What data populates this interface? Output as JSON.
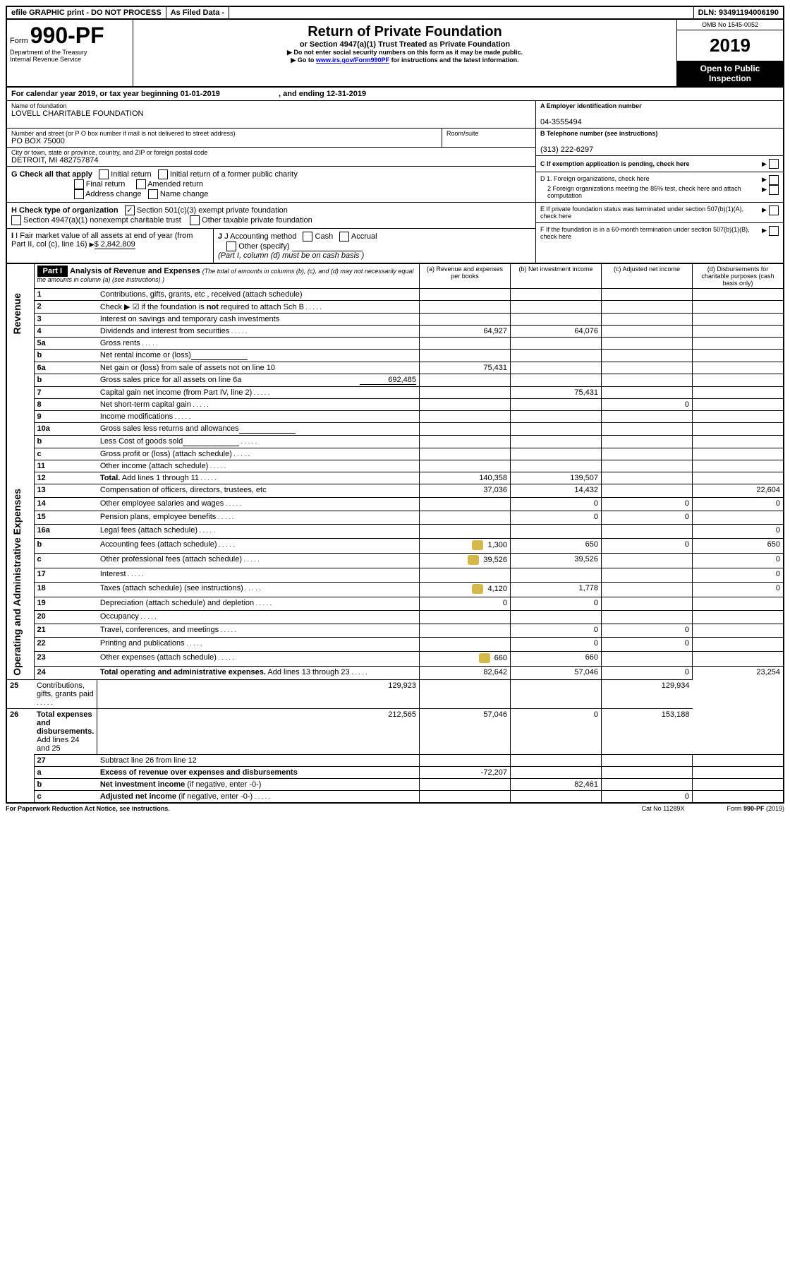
{
  "topbar": {
    "efile": "efile GRAPHIC print - DO NOT PROCESS",
    "asfiled": "As Filed Data -",
    "dln_label": "DLN:",
    "dln": "93491194006190"
  },
  "header": {
    "form_prefix": "Form",
    "form_number": "990-PF",
    "dept": "Department of the Treasury",
    "irs": "Internal Revenue Service",
    "title": "Return of Private Foundation",
    "subtitle": "or Section 4947(a)(1) Trust Treated as Private Foundation",
    "note1": "Do not enter social security numbers on this form as it may be made public.",
    "note2_pre": "Go to ",
    "note2_link": "www.irs.gov/Form990PF",
    "note2_post": " for instructions and the latest information.",
    "omb": "OMB No 1545-0052",
    "year": "2019",
    "open": "Open to Public Inspection"
  },
  "calendar": {
    "text1": "For calendar year 2019, or tax year beginning ",
    "begin": "01-01-2019",
    "text2": ", and ending ",
    "end": "12-31-2019"
  },
  "filer": {
    "name_label": "Name of foundation",
    "name": "LOVELL CHARITABLE FOUNDATION",
    "addr_label": "Number and street (or P O  box number if mail is not delivered to street address)",
    "addr": "PO BOX 75000",
    "room_label": "Room/suite",
    "city_label": "City or town, state or province, country, and ZIP or foreign postal code",
    "city": "DETROIT, MI  482757874",
    "ein_label": "A Employer identification number",
    "ein": "04-3555494",
    "phone_label": "B Telephone number (see instructions)",
    "phone": "(313) 222-6297",
    "c_label": "C If exemption application is pending, check here"
  },
  "checks": {
    "g_label": "G Check all that apply",
    "initial": "Initial return",
    "initial_former": "Initial return of a former public charity",
    "final": "Final return",
    "amended": "Amended return",
    "address": "Address change",
    "name": "Name change",
    "h_label": "H Check type of organization",
    "h1": "Section 501(c)(3) exempt private foundation",
    "h2": "Section 4947(a)(1) nonexempt charitable trust",
    "h3": "Other taxable private foundation",
    "d1": "D 1. Foreign organizations, check here",
    "d2": "2  Foreign organizations meeting the 85% test, check here and attach computation",
    "e": "E  If private foundation status was terminated under section 507(b)(1)(A), check here",
    "f": "F  If the foundation is in a 60-month termination under section 507(b)(1)(B), check here",
    "i_label": "I Fair market value of all assets at end of year (from Part II, col  (c), line 16)",
    "i_value": "$  2,842,809",
    "j_label": "J Accounting method",
    "cash": "Cash",
    "accrual": "Accrual",
    "other": "Other (specify)",
    "j_note": "(Part I, column (d) must be on cash basis )"
  },
  "part1": {
    "label": "Part I",
    "title": "Analysis of Revenue and Expenses",
    "note": "(The total of amounts in columns (b), (c), and (d) may not necessarily equal the amounts in column (a) (see instructions) )",
    "col_a": "(a)    Revenue and expenses per books",
    "col_b": "(b)  Net investment income",
    "col_c": "(c)  Adjusted net income",
    "col_d": "(d)  Disbursements for charitable purposes (cash basis only)",
    "revenue_label": "Revenue",
    "expenses_label": "Operating and Administrative Expenses"
  },
  "rows": [
    {
      "n": "1",
      "label": "Contributions, gifts, grants, etc , received (attach schedule)",
      "a": "",
      "b": "",
      "c": "",
      "d": "",
      "gray_bcd": false
    },
    {
      "n": "2",
      "label": "Check ▶ ☑ if the foundation is <b>not</b> required to attach Sch  B",
      "a": "",
      "b": "",
      "c": "",
      "d": "",
      "dots": true
    },
    {
      "n": "3",
      "label": "Interest on savings and temporary cash investments",
      "a": "",
      "b": "",
      "c": "",
      "d": ""
    },
    {
      "n": "4",
      "label": "Dividends and interest from securities",
      "a": "64,927",
      "b": "64,076",
      "c": "",
      "d": "",
      "dots": true
    },
    {
      "n": "5a",
      "label": "Gross rents",
      "a": "",
      "b": "",
      "c": "",
      "d": "",
      "dots": true
    },
    {
      "n": "b",
      "label": "Net rental income or (loss)",
      "a": "",
      "b": "",
      "c": "",
      "d": "",
      "inline_blank": true
    },
    {
      "n": "6a",
      "label": "Net gain or (loss) from sale of assets not on line 10",
      "a": "75,431",
      "b": "",
      "c": "",
      "d": ""
    },
    {
      "n": "b",
      "label": "Gross sales price for all assets on line 6a",
      "inline_val": "692,485",
      "a": "",
      "b": "",
      "c": "",
      "d": ""
    },
    {
      "n": "7",
      "label": "Capital gain net income (from Part IV, line 2)",
      "a": "",
      "b": "75,431",
      "c": "",
      "d": "",
      "dots": true
    },
    {
      "n": "8",
      "label": "Net short-term capital gain",
      "a": "",
      "b": "",
      "c": "0",
      "d": "",
      "dots": true
    },
    {
      "n": "9",
      "label": "Income modifications",
      "a": "",
      "b": "",
      "c": "",
      "d": "",
      "dots": true
    },
    {
      "n": "10a",
      "label": "Gross sales less returns and allowances",
      "a": "",
      "b": "",
      "c": "",
      "d": "",
      "inline_blank": true
    },
    {
      "n": "b",
      "label": "Less  Cost of goods sold",
      "a": "",
      "b": "",
      "c": "",
      "d": "",
      "inline_blank": true,
      "dots": true
    },
    {
      "n": "c",
      "label": "Gross profit or (loss) (attach schedule)",
      "a": "",
      "b": "",
      "c": "",
      "d": "",
      "dots": true
    },
    {
      "n": "11",
      "label": "Other income (attach schedule)",
      "a": "",
      "b": "",
      "c": "",
      "d": "",
      "dots": true
    },
    {
      "n": "12",
      "label": "<b>Total.</b> Add lines 1 through 11",
      "a": "140,358",
      "b": "139,507",
      "c": "",
      "d": "",
      "dots": true,
      "bold": true
    },
    {
      "n": "13",
      "label": "Compensation of officers, directors, trustees, etc",
      "a": "37,036",
      "b": "14,432",
      "c": "",
      "d": "22,604",
      "section": "exp"
    },
    {
      "n": "14",
      "label": "Other employee salaries and wages",
      "a": "",
      "b": "0",
      "c": "0",
      "d": "0",
      "dots": true
    },
    {
      "n": "15",
      "label": "Pension plans, employee benefits",
      "a": "",
      "b": "0",
      "c": "0",
      "d": "",
      "dots": true
    },
    {
      "n": "16a",
      "label": "Legal fees (attach schedule)",
      "a": "",
      "b": "",
      "c": "",
      "d": "0",
      "dots": true
    },
    {
      "n": "b",
      "label": "Accounting fees (attach schedule)",
      "a": "1,300",
      "b": "650",
      "c": "0",
      "d": "650",
      "dots": true,
      "icon": true
    },
    {
      "n": "c",
      "label": "Other professional fees (attach schedule)",
      "a": "39,526",
      "b": "39,526",
      "c": "",
      "d": "0",
      "dots": true,
      "icon": true
    },
    {
      "n": "17",
      "label": "Interest",
      "a": "",
      "b": "",
      "c": "",
      "d": "0",
      "dots": true
    },
    {
      "n": "18",
      "label": "Taxes (attach schedule) (see instructions)",
      "a": "4,120",
      "b": "1,778",
      "c": "",
      "d": "0",
      "dots": true,
      "icon": true
    },
    {
      "n": "19",
      "label": "Depreciation (attach schedule) and depletion",
      "a": "0",
      "b": "0",
      "c": "",
      "d": "",
      "dots": true
    },
    {
      "n": "20",
      "label": "Occupancy",
      "a": "",
      "b": "",
      "c": "",
      "d": "",
      "dots": true
    },
    {
      "n": "21",
      "label": "Travel, conferences, and meetings",
      "a": "",
      "b": "0",
      "c": "0",
      "d": "",
      "dots": true
    },
    {
      "n": "22",
      "label": "Printing and publications",
      "a": "",
      "b": "0",
      "c": "0",
      "d": "",
      "dots": true
    },
    {
      "n": "23",
      "label": "Other expenses (attach schedule)",
      "a": "660",
      "b": "660",
      "c": "",
      "d": "",
      "dots": true,
      "icon": true
    },
    {
      "n": "24",
      "label": "<b>Total operating and administrative expenses.</b> Add lines 13 through 23",
      "a": "82,642",
      "b": "57,046",
      "c": "0",
      "d": "23,254",
      "dots": true
    },
    {
      "n": "25",
      "label": "Contributions, gifts, grants paid",
      "a": "129,923",
      "b": "",
      "c": "",
      "d": "129,934",
      "dots": true
    },
    {
      "n": "26",
      "label": "<b>Total expenses and disbursements.</b> Add lines 24 and 25",
      "a": "212,565",
      "b": "57,046",
      "c": "0",
      "d": "153,188"
    },
    {
      "n": "27",
      "label": "Subtract line 26 from line 12",
      "a": "",
      "b": "",
      "c": "",
      "d": "",
      "section": "net"
    },
    {
      "n": "a",
      "label": "<b>Excess of revenue over expenses and disbursements</b>",
      "a": "-72,207",
      "b": "",
      "c": "",
      "d": ""
    },
    {
      "n": "b",
      "label": "<b>Net investment income</b> (if negative, enter -0-)",
      "a": "",
      "b": "82,461",
      "c": "",
      "d": ""
    },
    {
      "n": "c",
      "label": "<b>Adjusted net income</b> (if negative, enter -0-)",
      "a": "",
      "b": "",
      "c": "0",
      "d": "",
      "dots": true
    }
  ],
  "footer": {
    "left": "For Paperwork Reduction Act Notice, see instructions.",
    "mid": "Cat  No  11289X",
    "right": "Form <b>990-PF</b> (2019)"
  },
  "colors": {
    "black": "#000000",
    "link": "#0000ee"
  }
}
